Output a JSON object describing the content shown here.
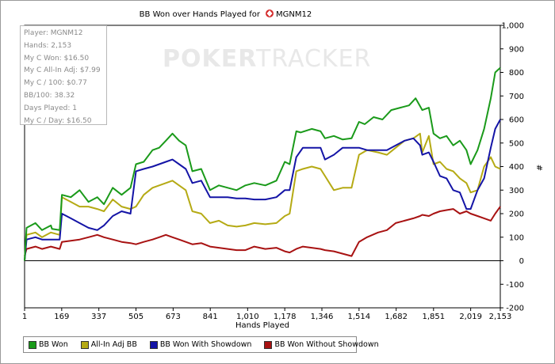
{
  "chart_data": {
    "type": "line",
    "title": "BB Won over Hands Played for",
    "player_name": "MGNM12",
    "watermark": {
      "left": "POKER",
      "right": "TRACKER"
    },
    "xlabel": "Hands Played",
    "ylabel": "#",
    "xlim": [
      1,
      2153
    ],
    "ylim": [
      -200,
      1000
    ],
    "x_ticks": [
      1,
      169,
      337,
      505,
      673,
      841,
      1010,
      1178,
      1346,
      1514,
      1682,
      1851,
      2019,
      2153
    ],
    "x_tick_labels": [
      "1",
      "169",
      "337",
      "505",
      "673",
      "841",
      "1,010",
      "1,178",
      "1,346",
      "1,514",
      "1,682",
      "1,851",
      "2,019",
      "2,153"
    ],
    "y_ticks": [
      -200,
      -100,
      0,
      100,
      200,
      300,
      400,
      500,
      600,
      700,
      800,
      900,
      1000
    ],
    "y_tick_labels": [
      "-200",
      "-100",
      "0",
      "100",
      "200",
      "300",
      "400",
      "500",
      "600",
      "700",
      "800",
      "900",
      "1,000"
    ],
    "grid": false,
    "legend_position": "bottom-left",
    "series": [
      {
        "name": "BB Won",
        "color": "#1a9a1a",
        "points": [
          [
            1,
            0
          ],
          [
            10,
            140
          ],
          [
            50,
            160
          ],
          [
            80,
            130
          ],
          [
            120,
            150
          ],
          [
            125,
            135
          ],
          [
            160,
            130
          ],
          [
            170,
            280
          ],
          [
            210,
            270
          ],
          [
            250,
            300
          ],
          [
            290,
            250
          ],
          [
            330,
            270
          ],
          [
            360,
            240
          ],
          [
            400,
            310
          ],
          [
            440,
            280
          ],
          [
            480,
            310
          ],
          [
            505,
            410
          ],
          [
            540,
            420
          ],
          [
            580,
            470
          ],
          [
            610,
            480
          ],
          [
            640,
            510
          ],
          [
            670,
            540
          ],
          [
            700,
            510
          ],
          [
            730,
            490
          ],
          [
            760,
            380
          ],
          [
            800,
            390
          ],
          [
            840,
            300
          ],
          [
            880,
            320
          ],
          [
            920,
            310
          ],
          [
            960,
            300
          ],
          [
            1000,
            320
          ],
          [
            1040,
            330
          ],
          [
            1090,
            320
          ],
          [
            1140,
            340
          ],
          [
            1178,
            420
          ],
          [
            1200,
            410
          ],
          [
            1230,
            550
          ],
          [
            1250,
            545
          ],
          [
            1300,
            560
          ],
          [
            1340,
            550
          ],
          [
            1360,
            520
          ],
          [
            1400,
            530
          ],
          [
            1440,
            515
          ],
          [
            1480,
            520
          ],
          [
            1514,
            590
          ],
          [
            1540,
            580
          ],
          [
            1580,
            610
          ],
          [
            1620,
            600
          ],
          [
            1660,
            640
          ],
          [
            1700,
            650
          ],
          [
            1740,
            660
          ],
          [
            1770,
            690
          ],
          [
            1800,
            640
          ],
          [
            1830,
            650
          ],
          [
            1851,
            540
          ],
          [
            1880,
            520
          ],
          [
            1910,
            530
          ],
          [
            1940,
            490
          ],
          [
            1970,
            510
          ],
          [
            2000,
            470
          ],
          [
            2019,
            410
          ],
          [
            2050,
            470
          ],
          [
            2080,
            560
          ],
          [
            2110,
            690
          ],
          [
            2130,
            800
          ],
          [
            2153,
            820
          ]
        ]
      },
      {
        "name": "All-In Adj BB",
        "color": "#b5aa14",
        "points": [
          [
            1,
            0
          ],
          [
            10,
            110
          ],
          [
            50,
            120
          ],
          [
            80,
            100
          ],
          [
            120,
            120
          ],
          [
            160,
            110
          ],
          [
            170,
            270
          ],
          [
            210,
            250
          ],
          [
            250,
            230
          ],
          [
            290,
            230
          ],
          [
            330,
            220
          ],
          [
            360,
            210
          ],
          [
            400,
            260
          ],
          [
            440,
            230
          ],
          [
            480,
            220
          ],
          [
            505,
            230
          ],
          [
            540,
            280
          ],
          [
            580,
            310
          ],
          [
            610,
            320
          ],
          [
            640,
            330
          ],
          [
            670,
            340
          ],
          [
            700,
            320
          ],
          [
            730,
            300
          ],
          [
            760,
            210
          ],
          [
            800,
            200
          ],
          [
            840,
            160
          ],
          [
            880,
            170
          ],
          [
            920,
            150
          ],
          [
            960,
            145
          ],
          [
            1000,
            150
          ],
          [
            1040,
            160
          ],
          [
            1090,
            155
          ],
          [
            1140,
            160
          ],
          [
            1178,
            190
          ],
          [
            1200,
            200
          ],
          [
            1230,
            380
          ],
          [
            1260,
            390
          ],
          [
            1300,
            400
          ],
          [
            1340,
            390
          ],
          [
            1360,
            360
          ],
          [
            1400,
            300
          ],
          [
            1440,
            310
          ],
          [
            1480,
            310
          ],
          [
            1514,
            450
          ],
          [
            1550,
            470
          ],
          [
            1600,
            460
          ],
          [
            1640,
            450
          ],
          [
            1680,
            480
          ],
          [
            1720,
            510
          ],
          [
            1760,
            520
          ],
          [
            1790,
            540
          ],
          [
            1800,
            460
          ],
          [
            1830,
            530
          ],
          [
            1851,
            410
          ],
          [
            1880,
            420
          ],
          [
            1910,
            390
          ],
          [
            1940,
            380
          ],
          [
            1970,
            350
          ],
          [
            2000,
            330
          ],
          [
            2019,
            290
          ],
          [
            2050,
            300
          ],
          [
            2080,
            400
          ],
          [
            2110,
            440
          ],
          [
            2130,
            400
          ],
          [
            2153,
            390
          ]
        ]
      },
      {
        "name": "BB Won With Showdown",
        "color": "#1414a6",
        "points": [
          [
            1,
            0
          ],
          [
            10,
            90
          ],
          [
            50,
            100
          ],
          [
            80,
            90
          ],
          [
            120,
            90
          ],
          [
            160,
            90
          ],
          [
            170,
            200
          ],
          [
            210,
            180
          ],
          [
            250,
            160
          ],
          [
            290,
            140
          ],
          [
            330,
            130
          ],
          [
            360,
            150
          ],
          [
            400,
            190
          ],
          [
            440,
            210
          ],
          [
            480,
            200
          ],
          [
            505,
            380
          ],
          [
            540,
            390
          ],
          [
            580,
            400
          ],
          [
            610,
            410
          ],
          [
            640,
            420
          ],
          [
            670,
            430
          ],
          [
            700,
            410
          ],
          [
            730,
            390
          ],
          [
            760,
            330
          ],
          [
            800,
            340
          ],
          [
            840,
            270
          ],
          [
            880,
            270
          ],
          [
            920,
            270
          ],
          [
            960,
            265
          ],
          [
            1000,
            265
          ],
          [
            1040,
            260
          ],
          [
            1090,
            260
          ],
          [
            1140,
            270
          ],
          [
            1178,
            300
          ],
          [
            1200,
            300
          ],
          [
            1230,
            440
          ],
          [
            1260,
            480
          ],
          [
            1300,
            480
          ],
          [
            1340,
            480
          ],
          [
            1360,
            430
          ],
          [
            1400,
            450
          ],
          [
            1440,
            480
          ],
          [
            1480,
            480
          ],
          [
            1514,
            480
          ],
          [
            1550,
            470
          ],
          [
            1600,
            470
          ],
          [
            1640,
            470
          ],
          [
            1680,
            490
          ],
          [
            1720,
            510
          ],
          [
            1760,
            520
          ],
          [
            1790,
            490
          ],
          [
            1800,
            450
          ],
          [
            1830,
            460
          ],
          [
            1851,
            420
          ],
          [
            1880,
            360
          ],
          [
            1910,
            350
          ],
          [
            1940,
            300
          ],
          [
            1970,
            290
          ],
          [
            2000,
            220
          ],
          [
            2019,
            220
          ],
          [
            2050,
            300
          ],
          [
            2080,
            350
          ],
          [
            2110,
            480
          ],
          [
            2130,
            560
          ],
          [
            2153,
            600
          ]
        ]
      },
      {
        "name": "BB Won Without Showdown",
        "color": "#a81212",
        "points": [
          [
            1,
            20
          ],
          [
            10,
            50
          ],
          [
            50,
            60
          ],
          [
            80,
            50
          ],
          [
            120,
            60
          ],
          [
            160,
            50
          ],
          [
            170,
            80
          ],
          [
            210,
            85
          ],
          [
            250,
            90
          ],
          [
            290,
            100
          ],
          [
            330,
            110
          ],
          [
            360,
            100
          ],
          [
            400,
            90
          ],
          [
            440,
            80
          ],
          [
            480,
            75
          ],
          [
            505,
            70
          ],
          [
            540,
            80
          ],
          [
            580,
            90
          ],
          [
            610,
            100
          ],
          [
            640,
            110
          ],
          [
            670,
            100
          ],
          [
            700,
            90
          ],
          [
            730,
            80
          ],
          [
            760,
            70
          ],
          [
            800,
            75
          ],
          [
            840,
            60
          ],
          [
            880,
            55
          ],
          [
            920,
            50
          ],
          [
            960,
            45
          ],
          [
            1000,
            45
          ],
          [
            1040,
            60
          ],
          [
            1090,
            50
          ],
          [
            1140,
            55
          ],
          [
            1178,
            40
          ],
          [
            1200,
            35
          ],
          [
            1230,
            50
          ],
          [
            1260,
            60
          ],
          [
            1300,
            55
          ],
          [
            1340,
            50
          ],
          [
            1360,
            45
          ],
          [
            1400,
            40
          ],
          [
            1440,
            30
          ],
          [
            1480,
            20
          ],
          [
            1514,
            80
          ],
          [
            1550,
            100
          ],
          [
            1600,
            120
          ],
          [
            1640,
            130
          ],
          [
            1680,
            160
          ],
          [
            1720,
            170
          ],
          [
            1760,
            180
          ],
          [
            1790,
            190
          ],
          [
            1800,
            195
          ],
          [
            1830,
            190
          ],
          [
            1851,
            200
          ],
          [
            1880,
            210
          ],
          [
            1910,
            215
          ],
          [
            1940,
            220
          ],
          [
            1970,
            200
          ],
          [
            2000,
            210
          ],
          [
            2019,
            200
          ],
          [
            2050,
            190
          ],
          [
            2080,
            180
          ],
          [
            2110,
            170
          ],
          [
            2130,
            200
          ],
          [
            2153,
            230
          ]
        ]
      }
    ]
  },
  "stats": [
    "Player: MGNM12",
    "Hands: 2,153",
    "My C Won: $16.50",
    "My C All-In Adj: $7.99",
    "My C / 100: $0.77",
    "BB/100: 38.32",
    "Days Played: 1",
    "My C / Day: $16.50"
  ],
  "legend": [
    "BB Won",
    "All-In Adj BB",
    "BB Won With Showdown",
    "BB Won Without Showdown"
  ]
}
